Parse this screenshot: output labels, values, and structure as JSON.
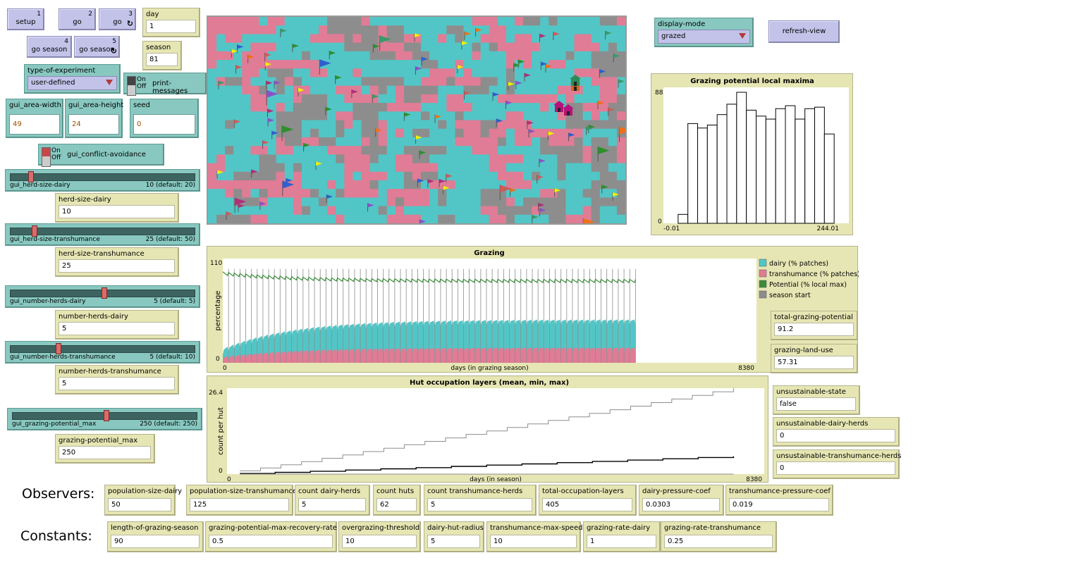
{
  "buttons": {
    "setup": {
      "label": "setup",
      "key": "1"
    },
    "go": {
      "label": "go",
      "key": "2"
    },
    "go_forever": {
      "label": "go",
      "key": "3",
      "loop_icon": "forever-icon"
    },
    "go_season": {
      "label": "go season",
      "key": "4"
    },
    "go_season_forever": {
      "label": "go season",
      "key": "5",
      "loop_icon": "forever-icon"
    },
    "refresh_view": {
      "label": "refresh-view"
    }
  },
  "monitors": {
    "day": {
      "label": "day",
      "value": "1"
    },
    "season": {
      "label": "season",
      "value": "81"
    }
  },
  "choosers": {
    "type_of_experiment": {
      "label": "type-of-experiment",
      "value": "user-defined"
    },
    "display_mode": {
      "label": "display-mode",
      "value": "grazed"
    }
  },
  "switches": {
    "print_messages": {
      "label": "print-messages",
      "on": "On",
      "off": "Off"
    },
    "conflict_avoidance": {
      "label": "gui_conflict-avoidance",
      "on": "On",
      "off": "Off"
    }
  },
  "inputs": {
    "area_width": {
      "label": "gui_area-width",
      "value": "49"
    },
    "area_height": {
      "label": "gui_area-height",
      "value": "24"
    },
    "seed": {
      "label": "seed",
      "value": "0"
    }
  },
  "sliders": [
    {
      "name": "gui_herd-size-dairy",
      "value": "10 (default: 20)",
      "fraction": 0.1
    },
    {
      "name": "gui_herd-size-transhumance",
      "value": "25 (default: 50)",
      "fraction": 0.12
    },
    {
      "name": "gui_number-herds-dairy",
      "value": "5 (default: 5)",
      "fraction": 0.5
    },
    {
      "name": "gui_number-herds-transhumance",
      "value": "5 (default: 10)",
      "fraction": 0.25
    },
    {
      "name": "gui_grazing-potential_max",
      "value": "250 (default: 250)",
      "fraction": 0.5
    }
  ],
  "slider_monitors": {
    "herd_size_dairy": {
      "label": "herd-size-dairy",
      "value": "10"
    },
    "herd_size_transhumance": {
      "label": "herd-size-transhumance",
      "value": "25"
    },
    "number_herds_dairy": {
      "label": "number-herds-dairy",
      "value": "5"
    },
    "number_herds_transhumance": {
      "label": "number-herds-transhumance",
      "value": "5"
    },
    "grazing_potential_max": {
      "label": "grazing-potential_max",
      "value": "250"
    }
  },
  "right_monitors": {
    "total_grazing_potential": {
      "label": "total-grazing-potential",
      "value": "91.2"
    },
    "grazing_land_use": {
      "label": "grazing-land-use",
      "value": "57.31"
    },
    "unsustainable_state": {
      "label": "unsustainable-state",
      "value": "false"
    },
    "unsustainable_dairy_herds": {
      "label": "unsustainable-dairy-herds",
      "value": "0"
    },
    "unsustainable_transhumance_herds": {
      "label": "unsustainable-transhumance-herds",
      "value": "0"
    }
  },
  "observers": {
    "section_label": "Observers:",
    "items": [
      {
        "label": "population-size-dairy",
        "value": "50"
      },
      {
        "label": "population-size-transhumance",
        "value": "125"
      },
      {
        "label": "count dairy-herds",
        "value": "5"
      },
      {
        "label": "count huts",
        "value": "62"
      },
      {
        "label": "count transhumance-herds",
        "value": "5"
      },
      {
        "label": "total-occupation-layers",
        "value": "405"
      },
      {
        "label": "dairy-pressure-coef",
        "value": "0.0303"
      },
      {
        "label": "transhumance-pressure-coef",
        "value": "0.019"
      }
    ]
  },
  "constants": {
    "section_label": "Constants:",
    "items": [
      {
        "label": "length-of-grazing-season",
        "value": "90"
      },
      {
        "label": "grazing-potential-max-recovery-rate",
        "value": "0.5"
      },
      {
        "label": "overgrazing-threshold",
        "value": "10"
      },
      {
        "label": "dairy-hut-radius",
        "value": "5"
      },
      {
        "label": "transhumance-max-speed",
        "value": "10"
      },
      {
        "label": "grazing-rate-dairy",
        "value": "1"
      },
      {
        "label": "grazing-rate-transhumance",
        "value": "0.25"
      }
    ]
  },
  "world": {
    "cols": 49,
    "rows": 24,
    "colors": {
      "dairy": "#52c6c6",
      "transhumance": "#e07c95",
      "grey": "#8d8d8d"
    },
    "flag_colors": [
      "#2d8f2d",
      "#f07018",
      "#8a52c8",
      "#f0f000",
      "#2d5fd0",
      "#b0307a",
      "#d05a5a",
      "#3a9a6a"
    ],
    "flag_count": 95,
    "hut_colors": [
      "#b8127a",
      "#d2691e",
      "#2e8b57"
    ]
  },
  "chart_data": [
    {
      "type": "bar",
      "title": "Grazing potential local maxima",
      "xlim_labels": [
        "-0.01",
        "244.01"
      ],
      "ylim": [
        0,
        88
      ],
      "ytick_labels": [
        "0",
        "88"
      ],
      "values": [
        0,
        6,
        67,
        64,
        66,
        73,
        80,
        88,
        76,
        72,
        70,
        77,
        79,
        70,
        77,
        78,
        60,
        0
      ],
      "tick_labels": [
        "88",
        "0",
        "-0.01",
        "244.01"
      ]
    },
    {
      "type": "area",
      "title": "Grazing",
      "xlabel": "days (in grazing season)",
      "ylabel": "percentage",
      "xlim": [
        0,
        8380
      ],
      "ylim": [
        0,
        110
      ],
      "tick_labels": [
        "110",
        "0",
        "0",
        "8380"
      ],
      "legend": [
        {
          "name": "dairy (% patches)",
          "color": "#52c6c6"
        },
        {
          "name": "transhumance (% patches)",
          "color": "#e07c95"
        },
        {
          "name": "Potential (% local max)",
          "color": "#3a8c3a"
        },
        {
          "name": "season start",
          "color": "#8d8d8d"
        }
      ],
      "seasons": 72,
      "days_per_season": 90,
      "dairy_start": 8,
      "dairy_end": 29,
      "trans_start": 5,
      "trans_end": 16,
      "potential_start": 96,
      "potential_end": 88
    },
    {
      "type": "line",
      "title": "Hut occupation layers (mean, min, max)",
      "xlabel": "days (in season)",
      "ylabel": "count per hut",
      "xlim": [
        0,
        8380
      ],
      "ylim": [
        0,
        26.4
      ],
      "tick_labels": [
        "26.4",
        "0",
        "0",
        "8380"
      ],
      "series": [
        {
          "name": "max",
          "color": "#8d8d8d",
          "start": 1,
          "end": 26.4
        },
        {
          "name": "mean",
          "color": "#000000",
          "start": 0.2,
          "end": 5.5
        },
        {
          "name": "min",
          "color": "#8d8d8d",
          "start": 0,
          "end": 0
        }
      ],
      "x_end": 7900
    }
  ]
}
